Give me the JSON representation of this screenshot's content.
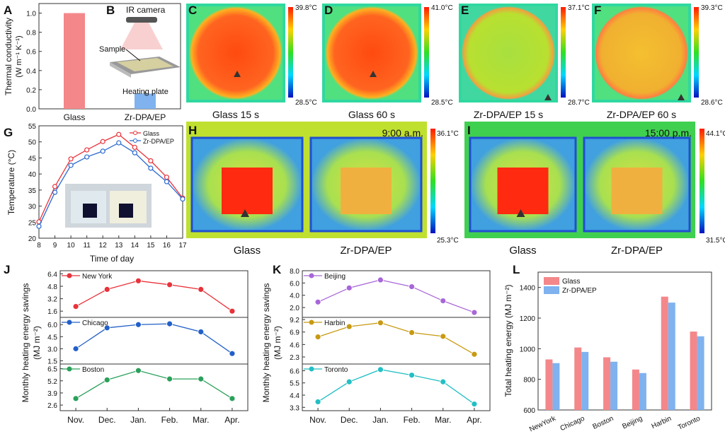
{
  "panel_letters": [
    "A",
    "B",
    "C",
    "D",
    "E",
    "F",
    "G",
    "H",
    "I",
    "J",
    "K",
    "L"
  ],
  "colors": {
    "glass": "#f4878a",
    "zr": "#7fb2ee",
    "newyork": "#e8323a",
    "chicago": "#2260c8",
    "boston": "#2aa05a",
    "beijing": "#a866d8",
    "harbin": "#c89a12",
    "toronto": "#22bfc4",
    "g_glass": "#e8323a",
    "g_zr": "#2a6ad0"
  },
  "schematic": {
    "camera_label": "IR camera",
    "sample_label": "Sample",
    "plate_label": "Heating plate"
  },
  "thermal_images": [
    {
      "letter": "C",
      "caption": "Glass 15 s",
      "max": "39.8°C",
      "min": "28.5°C",
      "palette": "red"
    },
    {
      "letter": "D",
      "caption": "Glass 60 s",
      "max": "41.0°C",
      "min": "28.5°C",
      "palette": "red"
    },
    {
      "letter": "E",
      "caption": "Zr-DPA/EP 15 s",
      "max": "37.1°C",
      "min": "28.7°C",
      "palette": "green"
    },
    {
      "letter": "F",
      "caption": "Zr-DPA/EP 60 s",
      "max": "39.3°C",
      "min": "28.6°C",
      "palette": "yellow"
    }
  ],
  "outdoor_images": [
    {
      "letter": "H",
      "time": "9:00 a.m.",
      "max": "36.1°C",
      "min": "25.3°C",
      "left_label": "Glass",
      "right_label": "Zr-DPA/EP"
    },
    {
      "letter": "I",
      "time": "15:00 p.m.",
      "max": "44.1°C",
      "min": "31.5°C",
      "left_label": "Glass",
      "right_label": "Zr-DPA/EP"
    }
  ],
  "chart_data": [
    {
      "id": "A",
      "type": "bar",
      "categories": [
        "Glass",
        "Zr-DPA/EP"
      ],
      "values": [
        1.0,
        0.16
      ],
      "errors": [
        0,
        0.02
      ],
      "ylabel": "Thermal conductivity",
      "ylabel2": "(W m⁻¹ K⁻¹)",
      "ylim": [
        0,
        1.1
      ],
      "yticks": [
        0.0,
        0.2,
        0.4,
        0.6,
        0.8,
        1.0
      ]
    },
    {
      "id": "G",
      "type": "line",
      "x": [
        8,
        9,
        10,
        11,
        12,
        13,
        14,
        15,
        16,
        17
      ],
      "xlabel": "Time of day",
      "ylabel": "Temperature (°C)",
      "xlim": [
        8,
        17
      ],
      "ylim": [
        20,
        55
      ],
      "yticks": [
        20,
        25,
        30,
        35,
        40,
        45,
        50,
        55
      ],
      "legend": "top-right",
      "series": [
        {
          "name": "Glass",
          "values": [
            25.1,
            36.1,
            44.7,
            47.5,
            50.1,
            52.3,
            48.3,
            44.1,
            39.0,
            32.5
          ]
        },
        {
          "name": "Zr-DPA/EP",
          "values": [
            23.7,
            34.3,
            42.7,
            45.3,
            47.1,
            49.7,
            46.6,
            41.8,
            37.6,
            32.2
          ]
        }
      ]
    },
    {
      "id": "J",
      "type": "line",
      "categories": [
        "Nov.",
        "Dec.",
        "Jan.",
        "Feb.",
        "Mar.",
        "Apr."
      ],
      "ylabel": "Monthly heating energy savings",
      "ylabel2": "(MJ m⁻²)",
      "panels": [
        {
          "name": "New York",
          "values": [
            2.2,
            4.4,
            5.5,
            5.0,
            4.4,
            1.6
          ],
          "ylim": [
            0.8,
            6.8
          ],
          "yticks": [
            1.6,
            3.2,
            4.8,
            6.4
          ]
        },
        {
          "name": "Chicago",
          "values": [
            3.0,
            5.6,
            6.0,
            6.1,
            5.1,
            2.4
          ],
          "ylim": [
            1.1,
            6.9
          ],
          "yticks": [
            1.5,
            3.0,
            4.5,
            6.0
          ]
        },
        {
          "name": "Boston",
          "values": [
            3.3,
            5.3,
            6.3,
            5.4,
            5.4,
            3.3
          ],
          "ylim": [
            2.0,
            7.0
          ],
          "yticks": [
            2.6,
            3.9,
            5.2,
            6.5
          ]
        }
      ]
    },
    {
      "id": "K",
      "type": "line",
      "categories": [
        "Nov.",
        "Dec.",
        "Jan.",
        "Feb.",
        "Mar.",
        "Apr."
      ],
      "ylabel": "Monthly heating energy savings",
      "ylabel2": "(MJ m⁻²)",
      "panels": [
        {
          "name": "Beijing",
          "values": [
            2.9,
            5.2,
            6.5,
            5.4,
            3.1,
            1.2
          ],
          "ylim": [
            0.4,
            8.0
          ],
          "yticks": [
            2.0,
            4.0,
            6.0,
            8.0
          ]
        },
        {
          "name": "Harbin",
          "values": [
            6.0,
            7.9,
            8.6,
            6.8,
            6.1,
            2.8
          ],
          "ylim": [
            1.0,
            9.6
          ],
          "yticks": [
            2.3,
            4.6,
            6.9,
            9.2
          ]
        },
        {
          "name": "Toronto",
          "values": [
            3.8,
            5.6,
            6.7,
            6.2,
            5.6,
            3.6
          ],
          "ylim": [
            3.0,
            7.2
          ],
          "yticks": [
            3.3,
            4.4,
            5.5,
            6.6
          ]
        }
      ]
    },
    {
      "id": "L",
      "type": "bar",
      "categories": [
        "NewYork",
        "Chicago",
        "Boston",
        "Beijing",
        "Harbin",
        "Toronto"
      ],
      "ylabel": "Total heating energy (MJ m⁻²)",
      "ylim": [
        600,
        1500
      ],
      "yticks": [
        600,
        800,
        1000,
        1200,
        1400
      ],
      "legend": "top-left",
      "series": [
        {
          "name": "Glass",
          "values": [
            930,
            1008,
            944,
            864,
            1340,
            1112
          ]
        },
        {
          "name": "Zr-DPA/EP",
          "values": [
            906,
            979,
            915,
            841,
            1301,
            1081
          ]
        }
      ]
    }
  ]
}
